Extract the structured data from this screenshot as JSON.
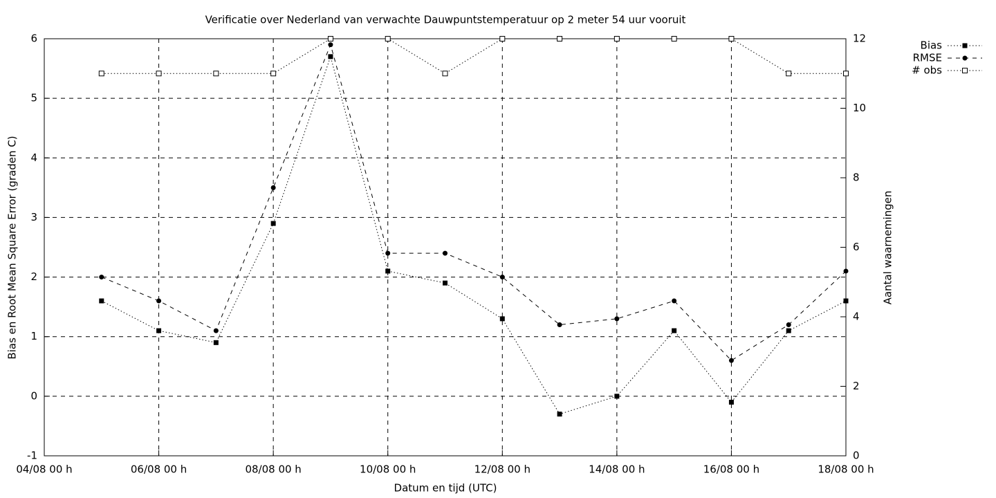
{
  "chart_data": {
    "type": "line",
    "title": "Verificatie over Nederland van verwachte Dauwpuntstemperatuur op 2 meter 54 uur vooruit",
    "x_label": "Datum en tijd (UTC)",
    "y_label": "Bias en Root Mean Square Error (graden C)",
    "y2_label": "Aantal waarnemingen",
    "x": [
      5,
      6,
      7,
      8,
      9,
      10,
      11,
      12,
      13,
      14,
      15,
      16,
      17,
      18
    ],
    "xlim": [
      4,
      18
    ],
    "xticks": [
      {
        "value": 4,
        "label": "04/08 00 h"
      },
      {
        "value": 6,
        "label": "06/08 00 h"
      },
      {
        "value": 8,
        "label": "08/08 00 h"
      },
      {
        "value": 10,
        "label": "10/08 00 h"
      },
      {
        "value": 12,
        "label": "12/08 00 h"
      },
      {
        "value": 14,
        "label": "14/08 00 h"
      },
      {
        "value": 16,
        "label": "16/08 00 h"
      },
      {
        "value": 18,
        "label": "18/08 00 h"
      }
    ],
    "ylim": [
      -1,
      6
    ],
    "yticks": [
      -1,
      0,
      1,
      2,
      3,
      4,
      5,
      6
    ],
    "y2lim": [
      0,
      12
    ],
    "y2ticks": [
      0,
      2,
      4,
      6,
      8,
      10,
      12
    ],
    "grid": true,
    "legend": "outside-top-right",
    "series": [
      {
        "name": "Bias",
        "color": "#000000",
        "line_style": "dotted",
        "marker": "filled-square",
        "values": [
          1.6,
          1.1,
          0.9,
          2.9,
          5.7,
          2.1,
          1.9,
          1.3,
          -0.3,
          0.0,
          1.1,
          -0.1,
          1.1,
          1.6
        ]
      },
      {
        "name": "RMSE",
        "color": "#000000",
        "line_style": "dashed",
        "marker": "filled-circle",
        "values": [
          2.0,
          1.6,
          1.1,
          3.5,
          5.9,
          2.4,
          2.4,
          2.0,
          1.2,
          1.3,
          1.6,
          0.6,
          1.2,
          2.1
        ]
      },
      {
        "name": "# obs",
        "color": "#000000",
        "line_style": "dotted",
        "marker": "open-square",
        "axis": "y2",
        "values": [
          11,
          11,
          11,
          11,
          12,
          12,
          11,
          12,
          12,
          12,
          12,
          12,
          11,
          11
        ]
      }
    ]
  }
}
